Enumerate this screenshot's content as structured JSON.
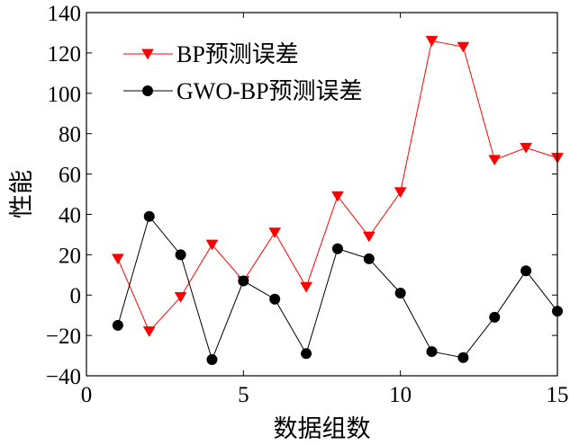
{
  "chart_data": {
    "type": "line",
    "title": "",
    "xlabel": "数据组数",
    "ylabel": "性能",
    "xlim": [
      0,
      15
    ],
    "ylim": [
      -40,
      140
    ],
    "xticks": [
      0,
      5,
      10,
      15
    ],
    "yticks": [
      -40,
      -20,
      0,
      20,
      40,
      60,
      80,
      100,
      120,
      140
    ],
    "grid": false,
    "legend_position": "top-left",
    "x": [
      1,
      2,
      3,
      4,
      5,
      6,
      7,
      8,
      9,
      10,
      11,
      12,
      13,
      14,
      15
    ],
    "series": [
      {
        "name": "BP预测误差",
        "color": "#ff0000",
        "marker": "triangle-down",
        "values": [
          18,
          -18,
          -1,
          25,
          7,
          31,
          4,
          49,
          29,
          51,
          126,
          123,
          67,
          73,
          68
        ]
      },
      {
        "name": "GWO-BP预测误差",
        "color": "#000000",
        "marker": "circle",
        "values": [
          -15,
          39,
          20,
          -32,
          7,
          -2,
          -29,
          23,
          18,
          1,
          -28,
          -31,
          -11,
          12,
          -8
        ]
      }
    ]
  }
}
